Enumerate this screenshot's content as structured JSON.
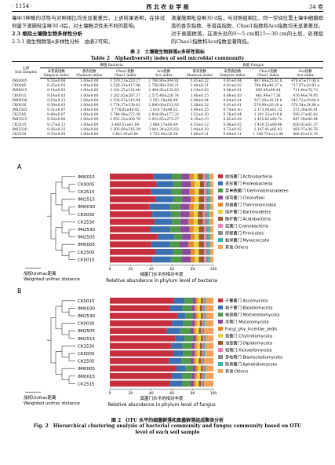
{
  "header": {
    "page": "· 1154 ·",
    "journal": "西 北 农 业 学 报",
    "volume": "34 卷"
  },
  "left_text": [
    "壤中3种酶的活性与对照相比均无显著差异。上述结果表明，在供试剂量下滴施吡虫啉30 d后，对土壤酶活性无不利的影响。",
    "2.3 根际土壤微生物多样性分析",
    "2.3.1 微生物群落α多样性分析　由表2可知，"
  ],
  "right_text": "滴灌施用吡虫啉30 d后，与对照组相比，同一空间位置土壤中细菌群落的香农指数、辛普森指数、Chao1指数和Ace指数均无显著差异。对于真菌群落，在滴头处的0～5 cm和15～30 cm的土层，处理组的Chao1指数和Ace指数显著降低。",
  "table": {
    "caption_zh": "表 2　土壤微生物群落α多样性指标",
    "caption_en": "Table 2　Alphadiversity index of soil microbial community",
    "samples_zh": "土样",
    "samples_en": "Soil samples",
    "bacteria": "细菌 Bacteria",
    "fungus": "真菌 Fungus",
    "columns": [
      [
        "辛普森指数",
        "Simpson index"
      ],
      [
        "香农指数",
        "Shannon index"
      ],
      [
        "Chao1指数",
        "Chao1 index"
      ],
      [
        "Ace指数",
        "Ace index"
      ],
      [
        "香农指数",
        "Shannon index"
      ],
      [
        "辛普森指数",
        "Simpson index"
      ],
      [
        "Chao1指数",
        "Chao1 index"
      ],
      [
        "Ace指数",
        "Ace index"
      ]
    ],
    "rows": [
      [
        "IMI0005",
        "9.33±0.06",
        "1.00±0.00",
        "3 579.11±320.27",
        "2 760.90±304.92",
        "3.61±0.22",
        "0.81±0.04",
        "467.64±25.61 b",
        "478.47±17.06 b"
      ],
      [
        "CK0005",
        "9.25±0.02",
        "1.00±0.00",
        "3 520.33±417.06",
        "2 758.88±330.21",
        "3.49±0.11",
        "0.81±0.02",
        "706.64±40.37 a",
        "717.87±18.93 a"
      ],
      [
        "IMI0015",
        "9.14±0.03",
        "1.00±0.00",
        "3 181.37±116.46",
        "2 484.85±135.83",
        "4.34±0.03",
        "0.96±0.01",
        "695.40±80.44",
        "711.40±78.73"
      ],
      [
        "CK0015",
        "9.14±0.03",
        "1.00±0.00",
        "3 282.02±287.37",
        "2 575.48±226.74",
        "3.60±0.15",
        "0.86±0.03",
        "461.99±77.38",
        "476.44±74.95"
      ],
      [
        "IMI0030",
        "9.18±0.13",
        "1.00±0.00",
        "3 534.47±143.94",
        "2 551.19±86.96",
        "3.90±0.04",
        "0.84±0.01",
        "537.26±16.36 b",
        "542.72±19.64 b"
      ],
      [
        "CK0030",
        "9.39±0.03",
        "1.00±0.00",
        "3 774.37±138.42",
        "2 800.00±151.93",
        "3.38±0.12",
        "0.91±0.01",
        "570.90±20.30 a",
        "576.54±24.88 a"
      ],
      [
        "IMI2505",
        "9.31±0.07",
        "1.00±0.00",
        "3 778.82±48.42",
        "2 818.73±48.53",
        "3.49±0.25",
        "0.74±0.10",
        "1 173.93±61.32",
        "572.30±36.91"
      ],
      [
        "CK2505",
        "9.40±0.07",
        "1.00±0.00",
        "3 748.08±272.30",
        "2 834.98±177.32",
        "3.52±0.20",
        "0.76±0.04",
        "1 201.33±119.6",
        "590.27±45.42"
      ],
      [
        "IMI2515",
        "9.30±0.06",
        "1.00±0.00",
        "2 852.32±208.78",
        "2 033.65±275.27",
        "4.19±0.13",
        "0.82±0.02",
        "1 435.62±80.72",
        "647.39±80.94"
      ],
      [
        "CK2515",
        "9.27±0.13",
        "1.00±0.00",
        "3 460.51±61.80",
        "2 688.17±80.89",
        "4.33±0.12",
        "0.90±0.02",
        "1 450.32±89.46",
        "650.92±61.37"
      ],
      [
        "IMI2530",
        "9.26±0.23",
        "1.00±0.00",
        "3 305.60±316.39",
        "3 041.34±225.92",
        "3.94±0.18",
        "0.73±0.02",
        "1 147.91±85.43",
        "493.37±36.76"
      ],
      [
        "CK2530",
        "9.33±0.05",
        "1.00±0.00",
        "3 481.30±8.64",
        "2 722.00±16.38",
        "3.86±0.11",
        "0.84±0.11",
        "1 349.73±112.48",
        "486.45±16.76"
      ]
    ]
  },
  "figure": {
    "caption_zh": "图 2　OTU 水平的细菌群落和真菌群落组成聚类分析",
    "caption_en": "Fig. 2　Hierarchical clustering analysis of bacterial community and fungus community based on OTU level of each soil sample",
    "panels": [
      {
        "type": "bar",
        "orientation": "horizontal",
        "stacked": true,
        "label": "A",
        "distance_zh": "加权Unifrac距离",
        "distance_en": "Weighted unifrac distance",
        "xlabel_zh": "细菌门水平的相对丰度",
        "xlabel_en": "Relative abundance in phylum level of bacteria",
        "xlim": [
          0,
          100
        ],
        "xticks": [
          0,
          20,
          40,
          60,
          80,
          100
        ],
        "categories": [
          "IMI0015",
          "CK0005",
          "CK2515",
          "IMI2515",
          "IMI0030",
          "CK0030",
          "CK2530",
          "IMI2530",
          "IMI2505",
          "IMI0005",
          "CK2505",
          "CK0015"
        ],
        "series": [
          {
            "name": "放线菌门 Actinobacteria",
            "color": "#c62f3d",
            "values": [
              42,
              45,
              40,
              44,
              38,
              41,
              43,
              39,
              46,
              40,
              44,
              41
            ]
          },
          {
            "name": "变形菌门 Proteobacteria",
            "color": "#3a6fb0",
            "values": [
              18,
              16,
              19,
              17,
              20,
              18,
              17,
              19,
              16,
              18,
              17,
              18
            ]
          },
          {
            "name": "芽单胞菌门 Gemmatimonadetes",
            "color": "#4e9a4a",
            "values": [
              9,
              8,
              10,
              9,
              10,
              9,
              8,
              10,
              8,
              9,
              9,
              10
            ]
          },
          {
            "name": "绿弯菌门 Chloroflexi",
            "color": "#8c4a9c",
            "values": [
              8,
              9,
              8,
              8,
              9,
              9,
              8,
              9,
              8,
              9,
              8,
              9
            ]
          },
          {
            "name": "热微菌门 Thermomicrobia",
            "color": "#e5892b",
            "values": [
              4,
              4,
              5,
              4,
              4,
              4,
              5,
              4,
              4,
              5,
              4,
              4
            ]
          },
          {
            "name": "拟杆菌门 Bacteroidetes",
            "color": "#e8d040",
            "values": [
              4,
              5,
              4,
              4,
              5,
              4,
              4,
              5,
              4,
              5,
              4,
              4
            ]
          },
          {
            "name": "酸杆菌门 Acidobacteria",
            "color": "#9a5a2e",
            "values": [
              5,
              4,
              5,
              5,
              5,
              5,
              5,
              5,
              5,
              5,
              5,
              5
            ]
          },
          {
            "name": "蓝菌门 Cyanobacteria",
            "color": "#e882b8",
            "values": [
              2,
              2,
              2,
              2,
              2,
              2,
              2,
              2,
              2,
              2,
              2,
              2
            ]
          },
          {
            "name": "厚壁菌门 Firmicutes",
            "color": "#8a8a8a",
            "values": [
              2,
              2,
              2,
              2,
              2,
              2,
              2,
              2,
              2,
              2,
              2,
              2
            ]
          },
          {
            "name": "黏球菌门 Myxococcota",
            "color": "#3bb3a8",
            "values": [
              2,
              2,
              2,
              2,
              2,
              2,
              2,
              2,
              2,
              2,
              2,
              2
            ]
          },
          {
            "name": "其他 Others",
            "color": "#f2a05c",
            "values": [
              4,
              3,
              3,
              3,
              3,
              4,
              4,
              3,
              3,
              3,
              3,
              3
            ]
          }
        ]
      },
      {
        "type": "bar",
        "orientation": "horizontal",
        "stacked": true,
        "label": "B",
        "distance_zh": "加权Unifrac距离",
        "distance_en": "Weighted unifrac distance",
        "xlabel_zh": "真菌门水平的相对丰度",
        "xlabel_en": "Relative abundance in phylum level of fungus",
        "xlim": [
          0,
          100
        ],
        "xticks": [
          0,
          20,
          40,
          60,
          80,
          100
        ],
        "categories": [
          "CK0015",
          "IMI0030",
          "IMI2530",
          "CK0030",
          "IMI2505",
          "IMI2515",
          "CK2530",
          "CK0005",
          "CK2505",
          "IMI0005",
          "IMI0015",
          "CK2515"
        ],
        "series": [
          {
            "name": "子囊菌门 Ascomycota",
            "color": "#c62f3d",
            "values": [
              62,
              58,
              65,
              60,
              55,
              63,
              59,
              61,
              57,
              64,
              60,
              58
            ]
          },
          {
            "name": "担子菌门 Basidiomycota",
            "color": "#3a6fb0",
            "values": [
              10,
              12,
              8,
              11,
              13,
              9,
              11,
              10,
              12,
              9,
              10,
              12
            ]
          },
          {
            "name": "被孢霉门 Mortierellomycota",
            "color": "#4e9a4a",
            "values": [
              8,
              9,
              7,
              8,
              10,
              8,
              9,
              8,
              9,
              7,
              9,
              8
            ]
          },
          {
            "name": "毛霉门 Mucoromycota",
            "color": "#8c4a9c",
            "values": [
              3,
              3,
              3,
              3,
              3,
              3,
              3,
              3,
              3,
              3,
              3,
              3
            ]
          },
          {
            "name": "Fungi_phy_Incertae_sedis",
            "color": "#e5892b",
            "values": [
              2,
              2,
              2,
              2,
              2,
              2,
              2,
              2,
              2,
              2,
              2,
              2
            ]
          },
          {
            "name": "壶菌门 Chytridiomycota",
            "color": "#e8d040",
            "values": [
              3,
              3,
              3,
              3,
              3,
              3,
              3,
              3,
              3,
              3,
              3,
              3
            ]
          },
          {
            "name": "油壶菌门 Olpidiomycota",
            "color": "#9a5a2e",
            "values": [
              2,
              2,
              2,
              2,
              2,
              2,
              2,
              2,
              2,
              2,
              2,
              2
            ]
          },
          {
            "name": "梳霉门 Kickxellomycota",
            "color": "#e882b8",
            "values": [
              1,
              1,
              1,
              1,
              1,
              1,
              1,
              1,
              1,
              1,
              1,
              1
            ]
          },
          {
            "name": "芽枝霉门 Blastocladiomycota",
            "color": "#8a8a8a",
            "values": [
              1,
              1,
              1,
              1,
              1,
              1,
              1,
              1,
              1,
              1,
              1,
              1
            ]
          },
          {
            "name": "隐真菌门 Aphelidiomycota",
            "color": "#3bb3a8",
            "values": [
              1,
              1,
              1,
              1,
              1,
              1,
              1,
              1,
              1,
              1,
              1,
              1
            ]
          },
          {
            "name": "其他 Others",
            "color": "#f2a05c",
            "values": [
              7,
              8,
              7,
              8,
              9,
              7,
              8,
              8,
              9,
              7,
              8,
              9
            ]
          }
        ]
      }
    ]
  }
}
